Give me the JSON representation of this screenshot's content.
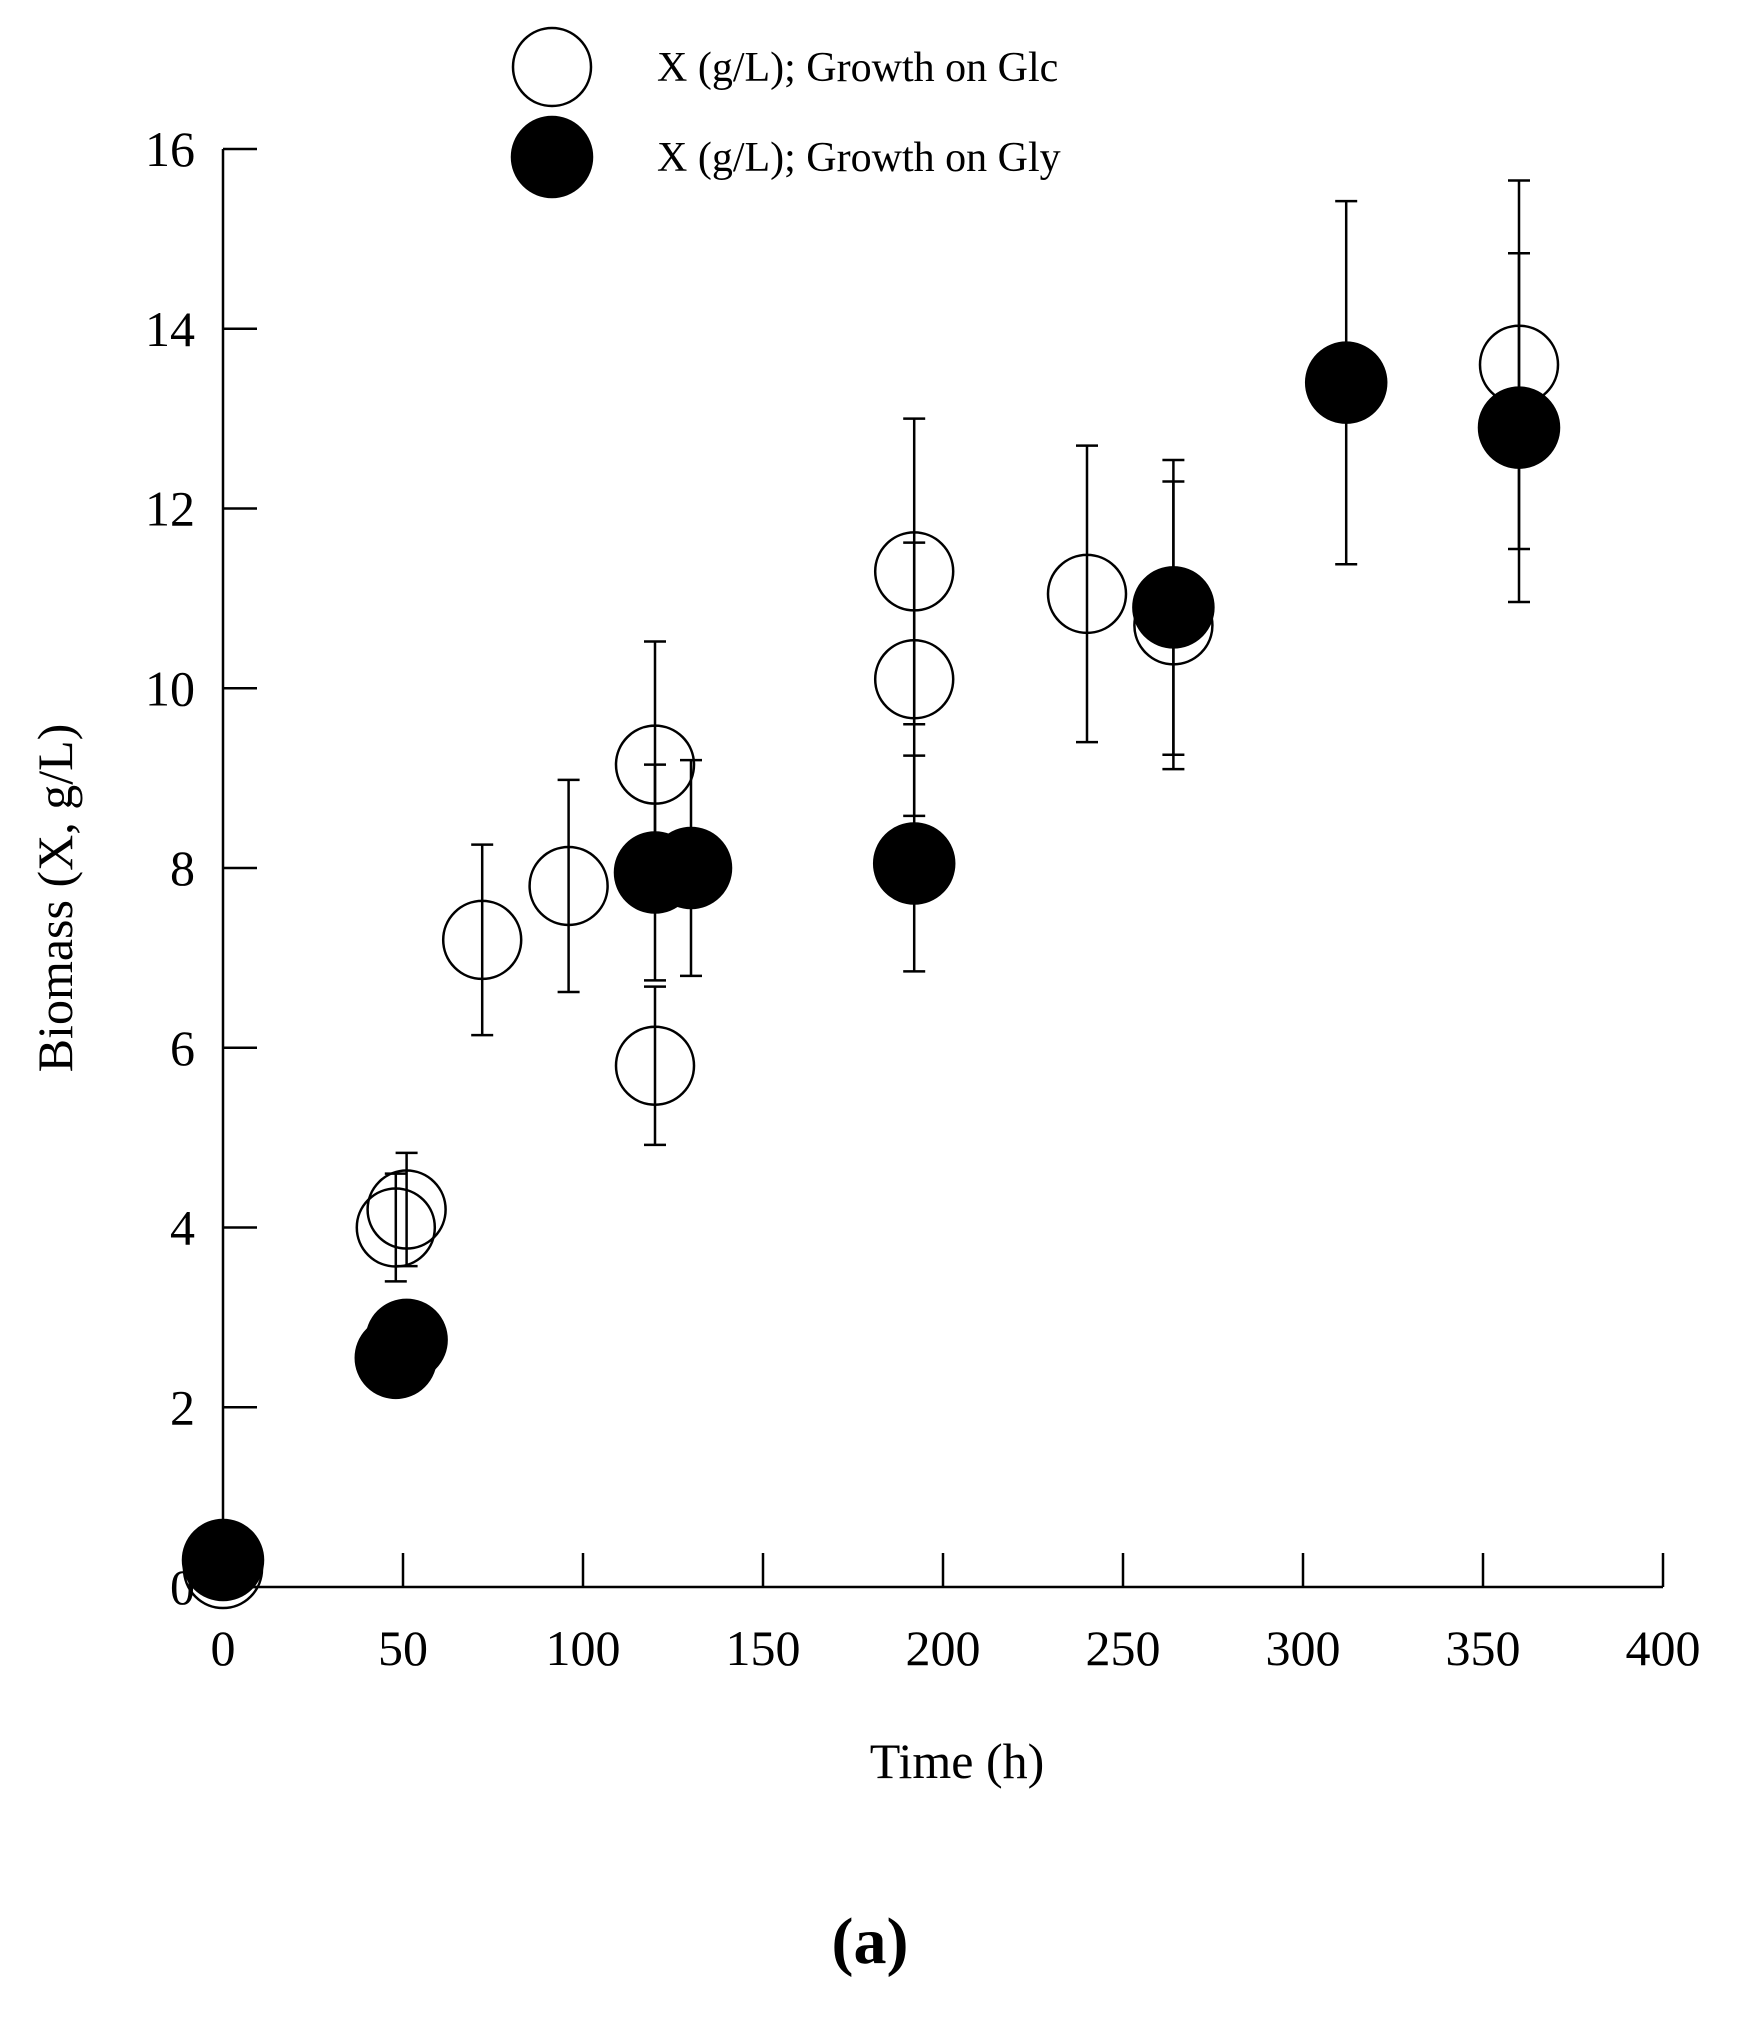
{
  "chart_data": {
    "type": "scatter",
    "title": "",
    "xlabel": "Time (h)",
    "ylabel": "Biomass (X, g/L)",
    "xlim": [
      0,
      400
    ],
    "ylim": [
      0,
      16
    ],
    "xticks": [
      0,
      50,
      100,
      150,
      200,
      250,
      300,
      350,
      400
    ],
    "yticks": [
      0,
      2,
      4,
      6,
      8,
      10,
      12,
      14,
      16
    ],
    "grid": false,
    "legend_position": "top-center",
    "panel_label": "(a)",
    "series": [
      {
        "name": "X (g/L); Growth on Glc",
        "marker": "open-circle",
        "color": "#000000",
        "points": [
          {
            "x": 0,
            "y": 0.2,
            "err": 0.3
          },
          {
            "x": 48,
            "y": 4.0,
            "err": 0.6
          },
          {
            "x": 51,
            "y": 4.2,
            "err": 0.63
          },
          {
            "x": 72,
            "y": 7.2,
            "err": 1.06
          },
          {
            "x": 96,
            "y": 7.8,
            "err": 1.18
          },
          {
            "x": 120,
            "y": 5.8,
            "err": 0.88
          },
          {
            "x": 120,
            "y": 9.15,
            "err": 1.37
          },
          {
            "x": 192,
            "y": 10.1,
            "err": 1.52
          },
          {
            "x": 192,
            "y": 11.3,
            "err": 1.7
          },
          {
            "x": 240,
            "y": 11.05,
            "err": 1.65
          },
          {
            "x": 264,
            "y": 10.7,
            "err": 1.6
          },
          {
            "x": 360,
            "y": 13.6,
            "err": 2.05
          }
        ]
      },
      {
        "name": "X (g/L); Growth on Gly",
        "marker": "filled-circle",
        "color": "#000000",
        "points": [
          {
            "x": 0,
            "y": 0.3,
            "err": 0.3
          },
          {
            "x": 48,
            "y": 2.55,
            "err": 0
          },
          {
            "x": 51,
            "y": 2.75,
            "err": 0
          },
          {
            "x": 120,
            "y": 7.95,
            "err": 1.2
          },
          {
            "x": 130,
            "y": 8.0,
            "err": 1.2
          },
          {
            "x": 192,
            "y": 8.05,
            "err": 1.2
          },
          {
            "x": 264,
            "y": 10.9,
            "err": 1.64
          },
          {
            "x": 312,
            "y": 13.4,
            "err": 2.02
          },
          {
            "x": 360,
            "y": 12.9,
            "err": 1.94
          }
        ]
      }
    ]
  }
}
